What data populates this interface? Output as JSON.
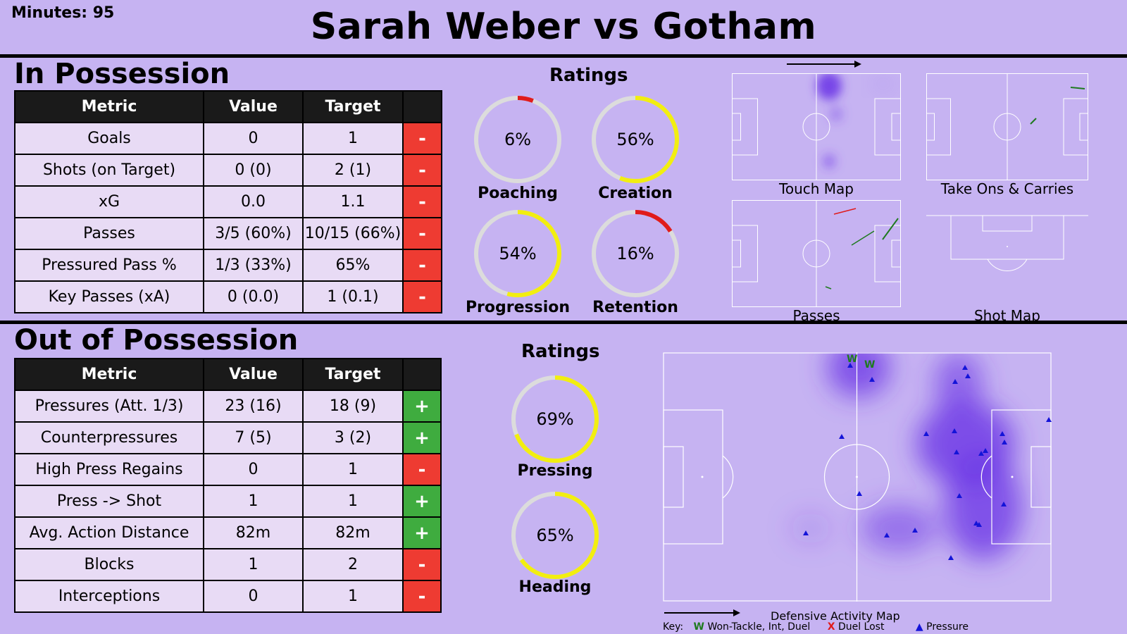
{
  "header": {
    "minutes": "Minutes: 95",
    "title": "Sarah Weber vs Gotham"
  },
  "in_possession": {
    "title": "In Possession",
    "columns": [
      "Metric",
      "Value",
      "Target",
      ""
    ],
    "rows": [
      {
        "metric": "Goals",
        "value": "0",
        "target": "1",
        "indicator": "-"
      },
      {
        "metric": "Shots (on Target)",
        "value": "0 (0)",
        "target": "2 (1)",
        "indicator": "-"
      },
      {
        "metric": "xG",
        "value": "0.0",
        "target": "1.1",
        "indicator": "-"
      },
      {
        "metric": "Passes",
        "value": "3/5 (60%)",
        "target": "10/15 (66%)",
        "indicator": "-"
      },
      {
        "metric": "Pressured Pass %",
        "value": "1/3 (33%)",
        "target": "65%",
        "indicator": "-"
      },
      {
        "metric": "Key Passes (xA)",
        "value": "0 (0.0)",
        "target": "1 (0.1)",
        "indicator": "-"
      }
    ],
    "ratings_title": "Ratings",
    "ratings": [
      {
        "label": "Poaching",
        "value_text": "6%",
        "value": 0.06
      },
      {
        "label": "Creation",
        "value_text": "56%",
        "value": 0.56
      },
      {
        "label": "Progression",
        "value_text": "54%",
        "value": 0.54
      },
      {
        "label": "Retention",
        "value_text": "16%",
        "value": 0.16
      }
    ],
    "maps": {
      "touch": "Touch Map",
      "takeons": "Take Ons & Carries",
      "passes": "Passes",
      "shots": "Shot Map"
    }
  },
  "out_possession": {
    "title": "Out of Possession",
    "columns": [
      "Metric",
      "Value",
      "Target",
      ""
    ],
    "rows": [
      {
        "metric": "Pressures (Att. 1/3)",
        "value": "23 (16)",
        "target": "18 (9)",
        "indicator": "+"
      },
      {
        "metric": "Counterpressures",
        "value": "7 (5)",
        "target": "3 (2)",
        "indicator": "+"
      },
      {
        "metric": "High Press Regains",
        "value": "0",
        "target": "1",
        "indicator": "-"
      },
      {
        "metric": "Press -> Shot",
        "value": "1",
        "target": "1",
        "indicator": "+"
      },
      {
        "metric": "Avg. Action Distance",
        "value": "82m",
        "target": "82m",
        "indicator": "+"
      },
      {
        "metric": "Blocks",
        "value": "1",
        "target": "2",
        "indicator": "-"
      },
      {
        "metric": "Interceptions",
        "value": "0",
        "target": "1",
        "indicator": "-"
      }
    ],
    "ratings_title": "Ratings",
    "ratings": [
      {
        "label": "Pressing",
        "value_text": "69%",
        "value": 0.69
      },
      {
        "label": "Heading",
        "value_text": "65%",
        "value": 0.65
      }
    ],
    "map_caption": "Defensive Activity Map",
    "key": {
      "prefix": "Key:",
      "won_symbol": "W",
      "won": "Won-Tackle, Int, Duel",
      "lost_symbol": "X",
      "lost": "Duel Lost",
      "pressure_symbol": "▲",
      "pressure": "Pressure"
    }
  },
  "colors": {
    "background": "#c6b3f2",
    "plus": "#3fac3f",
    "minus": "#ee3b32",
    "gauge_high": "#f2ee10",
    "gauge_low": "#e01b1b",
    "gauge_track": "#dcdcdc",
    "heat": "#6a33e6",
    "pressure_marker": "#1414d8",
    "won_marker": "#1f7a1f"
  }
}
